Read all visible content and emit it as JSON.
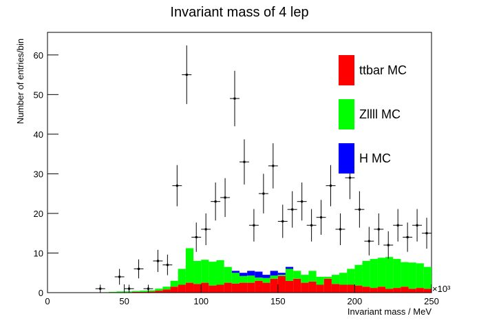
{
  "chart_data": {
    "type": "histogram",
    "title": "Invariant mass of 4 lep",
    "x_label": "Invariant mass / MeV",
    "y_label": "Number of entries/bin",
    "x_multiplier": "×10³",
    "xlim": [
      0,
      250
    ],
    "ylim": [
      0,
      65.7
    ],
    "xticks": [
      0,
      50,
      100,
      150,
      200,
      250
    ],
    "yticks": [
      0,
      10,
      20,
      30,
      40,
      50,
      60
    ],
    "stacked": true,
    "legend": "top-right",
    "bins": [
      0,
      5,
      10,
      15,
      20,
      25,
      30,
      35,
      40,
      45,
      50,
      55,
      60,
      65,
      70,
      75,
      80,
      85,
      90,
      95,
      100,
      105,
      110,
      115,
      120,
      125,
      130,
      135,
      140,
      145,
      150,
      155,
      160,
      165,
      170,
      175,
      180,
      185,
      190,
      195,
      200,
      205,
      210,
      215,
      220,
      225,
      230,
      235,
      240,
      245,
      250
    ],
    "series": [
      {
        "name": "ttbar MC",
        "color": "#ff0000",
        "values": [
          0,
          0,
          0,
          0,
          0,
          0,
          0,
          0,
          0.1,
          0.1,
          0.1,
          0.2,
          0.2,
          0.3,
          0.5,
          0.8,
          1.5,
          2.0,
          2.5,
          2.2,
          2.5,
          1.8,
          2.0,
          2.5,
          2.3,
          2.5,
          2.5,
          3.0,
          2.5,
          3.5,
          4.2,
          3.0,
          3.5,
          2.5,
          2.8,
          2.0,
          3.5,
          2.2,
          2.0,
          2.0,
          1.8,
          1.5,
          1.2,
          1.5,
          1.0,
          1.2,
          1.5,
          1.0,
          1.2,
          1.0
        ]
      },
      {
        "name": "Zllll MC",
        "color": "#00ff00",
        "values": [
          0,
          0,
          0,
          0,
          0,
          0,
          0,
          0.1,
          0.1,
          0.2,
          0.2,
          0.2,
          0.3,
          0.3,
          0.5,
          0.7,
          1.5,
          4.0,
          8.7,
          5.8,
          5.8,
          6.0,
          6.2,
          4.0,
          2.7,
          1.7,
          1.8,
          0.8,
          1.2,
          0.8,
          0.3,
          3.0,
          2.0,
          2.0,
          2.7,
          2.0,
          0.5,
          2.3,
          3.0,
          4.0,
          5.2,
          6.5,
          7.3,
          7.3,
          8.0,
          7.3,
          6.2,
          6.6,
          6.2,
          5.5
        ]
      },
      {
        "name": "H MC",
        "color": "#0000ff",
        "values": [
          0,
          0,
          0,
          0,
          0,
          0,
          0,
          0,
          0,
          0,
          0,
          0,
          0,
          0,
          0,
          0,
          0,
          0,
          0,
          0,
          0,
          0,
          0,
          0,
          0.5,
          0.8,
          1.2,
          1.5,
          0.8,
          1.2,
          0.5,
          0.5,
          0,
          0,
          0,
          0,
          0,
          0,
          0,
          0,
          0,
          0,
          0,
          0,
          0,
          0,
          0,
          0,
          0,
          0
        ]
      }
    ],
    "data": {
      "xerr": 3.125,
      "x": [
        34.375,
        46.875,
        53.125,
        59.375,
        65.625,
        71.875,
        78.125,
        84.375,
        90.625,
        96.875,
        103.125,
        109.375,
        115.625,
        121.875,
        128.125,
        134.375,
        140.625,
        146.875,
        153.125,
        159.375,
        165.625,
        171.875,
        178.125,
        184.375,
        190.625,
        196.875,
        203.125,
        209.375,
        215.625,
        221.875,
        228.125,
        234.375,
        240.625,
        246.875
      ],
      "values": [
        1,
        4,
        1,
        6,
        1,
        8,
        7,
        27,
        55,
        14,
        16,
        23,
        24,
        49,
        33,
        17,
        25,
        32,
        18,
        21,
        23,
        17,
        19,
        27,
        16,
        29,
        21,
        13,
        16,
        12,
        17,
        14,
        17,
        15
      ],
      "errors": [
        1,
        2,
        1,
        2.4,
        1,
        2.8,
        2.6,
        5.2,
        7.4,
        3.7,
        4,
        4.8,
        4.9,
        7,
        5.7,
        4.1,
        5,
        5.7,
        4.2,
        4.6,
        4.8,
        4.1,
        4.4,
        5.2,
        4,
        5.4,
        4.6,
        3.6,
        4,
        3.5,
        4.1,
        3.7,
        4.1,
        3.9
      ]
    }
  }
}
